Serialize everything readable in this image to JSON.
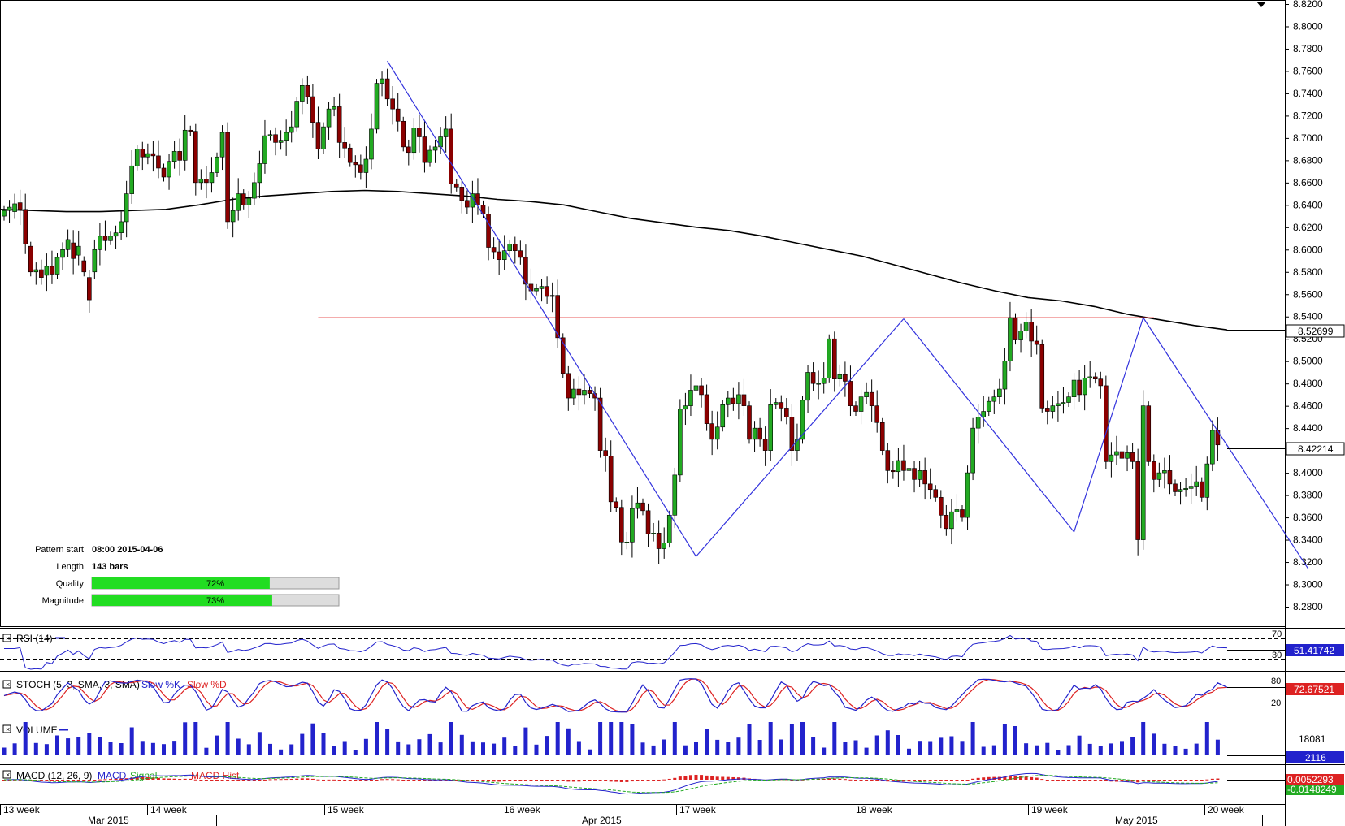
{
  "chart_data": [
    {
      "type": "candlestick",
      "ylim": [
        8.265,
        8.82
      ],
      "price_ticks": [
        "8.8200",
        "8.8000",
        "8.7800",
        "8.7600",
        "8.7400",
        "8.7200",
        "8.7000",
        "8.6800",
        "8.6600",
        "8.6400",
        "8.6200",
        "8.6000",
        "8.5800",
        "8.5600",
        "8.5400",
        "8.5200",
        "8.5000",
        "8.4800",
        "8.4600",
        "8.4400",
        "8.4200",
        "8.4000",
        "8.3800",
        "8.3600",
        "8.3400",
        "8.3200",
        "8.3000",
        "8.2800"
      ],
      "last_price_label": "8.42214",
      "ma_label": "8.52699",
      "ma_values": [
        8.636,
        8.635,
        8.634,
        8.634,
        8.635,
        8.636,
        8.64,
        8.645,
        8.648,
        8.65,
        8.652,
        8.653,
        8.652,
        8.65,
        8.648,
        8.645,
        8.643,
        8.64,
        8.634,
        8.628,
        8.624,
        8.62,
        8.617,
        8.612,
        8.606,
        8.6,
        8.594,
        8.586,
        8.578,
        8.57,
        8.563,
        8.557,
        8.554,
        8.549,
        8.542,
        8.537,
        8.532,
        8.528
      ],
      "resistance_level": 8.539,
      "pattern_points": [
        {
          "bar": 72,
          "price": 8.769
        },
        {
          "bar": 130,
          "price": 8.325
        },
        {
          "bar": 169,
          "price": 8.538
        },
        {
          "bar": 201,
          "price": 8.347
        },
        {
          "bar": 214,
          "price": 8.539
        },
        {
          "bar": 245,
          "price": 8.314
        }
      ],
      "candles": [
        [
          8.63,
          8.635
        ],
        [
          8.635,
          8.638
        ],
        [
          8.634,
          8.641
        ],
        [
          8.642,
          8.636
        ],
        [
          8.636,
          8.605
        ],
        [
          8.603,
          8.58
        ],
        [
          8.58,
          8.582
        ],
        [
          8.582,
          8.575
        ],
        [
          8.577,
          8.585
        ],
        [
          8.585,
          8.578
        ],
        [
          8.578,
          8.593
        ],
        [
          8.593,
          8.6
        ],
        [
          8.6,
          8.609
        ],
        [
          8.606,
          8.592
        ],
        [
          8.595,
          8.603
        ],
        [
          8.59,
          8.58
        ],
        [
          8.575,
          8.555
        ],
        [
          8.58,
          8.6
        ],
        [
          8.6,
          8.612
        ],
        [
          8.612,
          8.608
        ],
        [
          8.608,
          8.612
        ],
        [
          8.612,
          8.615
        ],
        [
          8.615,
          8.625
        ],
        [
          8.625,
          8.65
        ],
        [
          8.65,
          8.675
        ],
        [
          8.675,
          8.69
        ],
        [
          8.69,
          8.683
        ],
        [
          8.683,
          8.686
        ],
        [
          8.686,
          8.684
        ],
        [
          8.684,
          8.673
        ],
        [
          8.673,
          8.665
        ],
        [
          8.665,
          8.679
        ],
        [
          8.679,
          8.688
        ],
        [
          8.688,
          8.68
        ],
        [
          8.68,
          8.707
        ],
        [
          8.707,
          8.706
        ],
        [
          8.706,
          8.66
        ],
        [
          8.66,
          8.663
        ],
        [
          8.663,
          8.66
        ],
        [
          8.66,
          8.669
        ],
        [
          8.669,
          8.683
        ],
        [
          8.683,
          8.705
        ],
        [
          8.705,
          8.625
        ],
        [
          8.625,
          8.635
        ],
        [
          8.635,
          8.65
        ],
        [
          8.65,
          8.64
        ],
        [
          8.64,
          8.646
        ],
        [
          8.646,
          8.66
        ],
        [
          8.66,
          8.677
        ],
        [
          8.677,
          8.702
        ],
        [
          8.702,
          8.703
        ],
        [
          8.703,
          8.696
        ],
        [
          8.696,
          8.698
        ],
        [
          8.698,
          8.705
        ],
        [
          8.705,
          8.71
        ],
        [
          8.71,
          8.733
        ],
        [
          8.733,
          8.747
        ],
        [
          8.747,
          8.737
        ],
        [
          8.737,
          8.714
        ],
        [
          8.714,
          8.69
        ],
        [
          8.69,
          8.71
        ],
        [
          8.71,
          8.726
        ],
        [
          8.726,
          8.728
        ],
        [
          8.728,
          8.696
        ],
        [
          8.696,
          8.691
        ],
        [
          8.691,
          8.678
        ],
        [
          8.678,
          8.676
        ],
        [
          8.676,
          8.669
        ],
        [
          8.669,
          8.681
        ],
        [
          8.681,
          8.708
        ],
        [
          8.708,
          8.749
        ],
        [
          8.749,
          8.753
        ],
        [
          8.753,
          8.735
        ],
        [
          8.735,
          8.726
        ],
        [
          8.726,
          8.715
        ],
        [
          8.715,
          8.692
        ],
        [
          8.692,
          8.687
        ],
        [
          8.687,
          8.709
        ],
        [
          8.709,
          8.701
        ],
        [
          8.701,
          8.678
        ],
        [
          8.678,
          8.689
        ],
        [
          8.689,
          8.692
        ],
        [
          8.692,
          8.701
        ],
        [
          8.701,
          8.708
        ],
        [
          8.708,
          8.659
        ],
        [
          8.659,
          8.656
        ],
        [
          8.656,
          8.644
        ],
        [
          8.644,
          8.638
        ],
        [
          8.638,
          8.65
        ],
        [
          8.65,
          8.64
        ],
        [
          8.64,
          8.632
        ],
        [
          8.632,
          8.602
        ],
        [
          8.602,
          8.598
        ],
        [
          8.598,
          8.591
        ],
        [
          8.591,
          8.599
        ],
        [
          8.599,
          8.605
        ],
        [
          8.605,
          8.599
        ],
        [
          8.599,
          8.593
        ],
        [
          8.593,
          8.569
        ],
        [
          8.569,
          8.563
        ],
        [
          8.563,
          8.565
        ],
        [
          8.565,
          8.567
        ],
        [
          8.567,
          8.558
        ],
        [
          8.558,
          8.559
        ],
        [
          8.559,
          8.521
        ],
        [
          8.521,
          8.489
        ],
        [
          8.489,
          8.467
        ],
        [
          8.467,
          8.475
        ],
        [
          8.475,
          8.47
        ],
        [
          8.47,
          8.474
        ],
        [
          8.474,
          8.471
        ],
        [
          8.471,
          8.467
        ],
        [
          8.467,
          8.42
        ],
        [
          8.42,
          8.415
        ],
        [
          8.415,
          8.374
        ],
        [
          8.374,
          8.369
        ],
        [
          8.369,
          8.338
        ],
        [
          8.338,
          8.338
        ],
        [
          8.338,
          8.368
        ],
        [
          8.368,
          8.373
        ],
        [
          8.373,
          8.366
        ],
        [
          8.366,
          8.345
        ],
        [
          8.345,
          8.346
        ],
        [
          8.346,
          8.332
        ],
        [
          8.332,
          8.337
        ],
        [
          8.337,
          8.362
        ],
        [
          8.362,
          8.398
        ],
        [
          8.398,
          8.457
        ],
        [
          8.457,
          8.46
        ],
        [
          8.46,
          8.474
        ],
        [
          8.474,
          8.478
        ],
        [
          8.478,
          8.47
        ],
        [
          8.47,
          8.444
        ],
        [
          8.444,
          8.43
        ],
        [
          8.43,
          8.441
        ],
        [
          8.441,
          8.461
        ],
        [
          8.461,
          8.467
        ],
        [
          8.467,
          8.462
        ],
        [
          8.462,
          8.47
        ],
        [
          8.47,
          8.46
        ],
        [
          8.46,
          8.43
        ],
        [
          8.43,
          8.44
        ],
        [
          8.44,
          8.43
        ],
        [
          8.43,
          8.42
        ],
        [
          8.42,
          8.461
        ],
        [
          8.461,
          8.463
        ],
        [
          8.463,
          8.458
        ],
        [
          8.458,
          8.45
        ],
        [
          8.45,
          8.42
        ],
        [
          8.42,
          8.43
        ],
        [
          8.43,
          8.465
        ],
        [
          8.465,
          8.49
        ],
        [
          8.49,
          8.48
        ],
        [
          8.48,
          8.48
        ],
        [
          8.48,
          8.485
        ],
        [
          8.485,
          8.52
        ],
        [
          8.52,
          8.484
        ],
        [
          8.484,
          8.488
        ],
        [
          8.488,
          8.482
        ],
        [
          8.482,
          8.46
        ],
        [
          8.46,
          8.455
        ],
        [
          8.455,
          8.468
        ],
        [
          8.468,
          8.472
        ],
        [
          8.472,
          8.46
        ],
        [
          8.46,
          8.445
        ],
        [
          8.445,
          8.42
        ],
        [
          8.42,
          8.402
        ],
        [
          8.402,
          8.401
        ],
        [
          8.401,
          8.411
        ],
        [
          8.411,
          8.402
        ],
        [
          8.402,
          8.404
        ],
        [
          8.404,
          8.394
        ],
        [
          8.394,
          8.402
        ],
        [
          8.402,
          8.39
        ],
        [
          8.39,
          8.385
        ],
        [
          8.385,
          8.378
        ],
        [
          8.378,
          8.362
        ],
        [
          8.362,
          8.35
        ],
        [
          8.35,
          8.365
        ],
        [
          8.365,
          8.367
        ],
        [
          8.367,
          8.36
        ],
        [
          8.36,
          8.4
        ],
        [
          8.4,
          8.44
        ],
        [
          8.44,
          8.45
        ],
        [
          8.45,
          8.455
        ],
        [
          8.455,
          8.464
        ],
        [
          8.464,
          8.468
        ],
        [
          8.468,
          8.475
        ],
        [
          8.475,
          8.5
        ],
        [
          8.5,
          8.539
        ],
        [
          8.539,
          8.519
        ],
        [
          8.519,
          8.527
        ],
        [
          8.527,
          8.535
        ],
        [
          8.535,
          8.518
        ],
        [
          8.518,
          8.515
        ],
        [
          8.515,
          8.458
        ],
        [
          8.458,
          8.455
        ],
        [
          8.455,
          8.46
        ],
        [
          8.46,
          8.462
        ],
        [
          8.462,
          8.463
        ],
        [
          8.463,
          8.468
        ],
        [
          8.468,
          8.483
        ],
        [
          8.483,
          8.47
        ],
        [
          8.47,
          8.485
        ],
        [
          8.485,
          8.486
        ],
        [
          8.486,
          8.484
        ],
        [
          8.484,
          8.478
        ],
        [
          8.478,
          8.41
        ],
        [
          8.41,
          8.416
        ],
        [
          8.416,
          8.419
        ],
        [
          8.419,
          8.413
        ],
        [
          8.413,
          8.418
        ],
        [
          8.418,
          8.41
        ],
        [
          8.41,
          8.34
        ],
        [
          8.34,
          8.46
        ],
        [
          8.46,
          8.41
        ],
        [
          8.41,
          8.394
        ],
        [
          8.394,
          8.4
        ],
        [
          8.4,
          8.402
        ],
        [
          8.402,
          8.39
        ],
        [
          8.39,
          8.383
        ],
        [
          8.383,
          8.385
        ],
        [
          8.385,
          8.386
        ],
        [
          8.386,
          8.388
        ],
        [
          8.388,
          8.392
        ],
        [
          8.392,
          8.378
        ],
        [
          8.378,
          8.408
        ],
        [
          8.408,
          8.438
        ],
        [
          8.438,
          8.425
        ]
      ],
      "title": "",
      "xlabel": "",
      "ylabel": ""
    },
    {
      "type": "line",
      "name": "RSI (14)",
      "ticks": [
        "70",
        "30"
      ],
      "last_value": "51.41742"
    },
    {
      "type": "line",
      "name": "STOCH (5, 3, SMA, 3, SMA)",
      "series_names": [
        "Slow %K",
        "Slow %D"
      ],
      "ticks": [
        "80",
        "20"
      ],
      "last_value": "72.67521"
    },
    {
      "type": "bar",
      "name": "VOLUME",
      "ticks": [
        "18081"
      ],
      "last_value": "2116"
    },
    {
      "type": "line",
      "name": "MACD (12, 26, 9)",
      "series_names": [
        "MACD",
        "Signal",
        "MACD Hist"
      ],
      "last_value": "0.0052293",
      "second_value": "-0.0148249"
    }
  ],
  "pattern_info": {
    "start_label": "Pattern start",
    "start_value": "08:00 2015-04-06",
    "length_label": "Length",
    "length_value": "143 bars",
    "quality_label": "Quality",
    "quality_value": "72%",
    "quality_fraction": 0.72,
    "magnitude_label": "Magnitude",
    "magnitude_value": "73%",
    "magnitude_fraction": 0.73
  },
  "time_axis": {
    "weeks": [
      "13 week",
      "14 week",
      "15 week",
      "16 week",
      "17 week",
      "18 week",
      "19 week",
      "May 2015",
      "20 week"
    ],
    "months": [
      "Mar 2015",
      "Apr 2015",
      "May 2015"
    ]
  },
  "colors": {
    "bull": "#22aa22",
    "bear": "#8b0000",
    "pattern_line": "#3333dd",
    "resistance": "#e02020",
    "ma_line": "#000000",
    "rsi_line": "#2222cc",
    "stoch_k": "#2222cc",
    "stoch_d": "#dd2222",
    "volume_bar": "#2222cc",
    "macd_line": "#2222cc",
    "signal_line": "#22aa22",
    "hist": "#dd2222",
    "progress_fill": "#22dd22"
  }
}
